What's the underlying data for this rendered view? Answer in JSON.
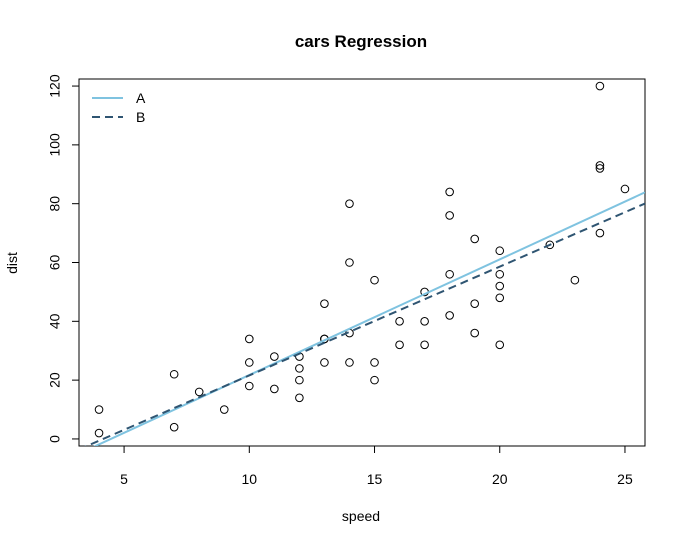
{
  "chart_data": {
    "type": "scatter",
    "title": "cars Regression",
    "xlabel": "speed",
    "ylabel": "dist",
    "xlim": [
      3.2,
      25.8
    ],
    "ylim": [
      -2.4,
      122.4
    ],
    "x_ticks": [
      5,
      10,
      15,
      20,
      25
    ],
    "y_ticks": [
      0,
      20,
      40,
      60,
      80,
      100,
      120
    ],
    "grid": false,
    "legend_position": "top-left",
    "points": [
      [
        4,
        2
      ],
      [
        4,
        10
      ],
      [
        7,
        4
      ],
      [
        7,
        22
      ],
      [
        8,
        16
      ],
      [
        9,
        10
      ],
      [
        10,
        18
      ],
      [
        10,
        26
      ],
      [
        10,
        34
      ],
      [
        11,
        17
      ],
      [
        11,
        28
      ],
      [
        12,
        14
      ],
      [
        12,
        20
      ],
      [
        12,
        24
      ],
      [
        12,
        28
      ],
      [
        13,
        26
      ],
      [
        13,
        34
      ],
      [
        13,
        34
      ],
      [
        13,
        46
      ],
      [
        14,
        26
      ],
      [
        14,
        36
      ],
      [
        14,
        60
      ],
      [
        14,
        80
      ],
      [
        15,
        20
      ],
      [
        15,
        26
      ],
      [
        15,
        54
      ],
      [
        16,
        32
      ],
      [
        16,
        40
      ],
      [
        17,
        32
      ],
      [
        17,
        40
      ],
      [
        17,
        50
      ],
      [
        18,
        42
      ],
      [
        18,
        56
      ],
      [
        18,
        76
      ],
      [
        18,
        84
      ],
      [
        19,
        36
      ],
      [
        19,
        46
      ],
      [
        19,
        68
      ],
      [
        20,
        32
      ],
      [
        20,
        48
      ],
      [
        20,
        52
      ],
      [
        20,
        56
      ],
      [
        20,
        64
      ],
      [
        22,
        66
      ],
      [
        23,
        54
      ],
      [
        24,
        70
      ],
      [
        24,
        92
      ],
      [
        24,
        93
      ],
      [
        24,
        120
      ],
      [
        25,
        85
      ]
    ],
    "series": [
      {
        "name": "A",
        "type": "line",
        "color": "#7fc3e0",
        "dash": "solid",
        "intercept": -17.58,
        "slope": 3.932
      },
      {
        "name": "B",
        "type": "line",
        "color": "#2f5572",
        "dash": "dashed",
        "intercept": -15.4,
        "slope": 3.7
      }
    ]
  }
}
